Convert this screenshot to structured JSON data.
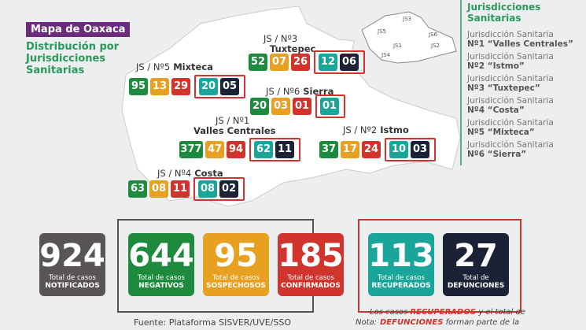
{
  "header": {
    "badge": "Mapa de Oaxaca",
    "subtitle": "Distribución por Jurisdicciones Sanitarias"
  },
  "legend": {
    "title": "Jurisdicciones Sanitarias",
    "items": [
      {
        "line1": "Jurisdicción Sanitaria",
        "line2": "Nº1 “Valles Centrales”"
      },
      {
        "line1": "Jurisdicción Sanitaria",
        "line2": "Nº2 “Istmo”"
      },
      {
        "line1": "Jurisdicción Sanitaria",
        "line2": "Nº3 “Tuxtepec”"
      },
      {
        "line1": "Jurisdicción Sanitaria",
        "line2": "Nº4 “Costa”"
      },
      {
        "line1": "Jurisdicción Sanitaria",
        "line2": "Nº5 “Mixteca”"
      },
      {
        "line1": "Jurisdicción Sanitaria",
        "line2": "Nº6 “Sierra”"
      }
    ]
  },
  "mini_map": {
    "labels": [
      "JS3",
      "JS5",
      "JS6",
      "JS1",
      "JS2",
      "JS4"
    ]
  },
  "regions": [
    {
      "code": "JS / Nº3",
      "name": "Tuxtepec",
      "values": [
        "52",
        "07",
        "26",
        "12",
        "06"
      ]
    },
    {
      "code": "JS / Nº5",
      "name": "Mixteca",
      "values": [
        "95",
        "13",
        "29",
        "20",
        "05"
      ]
    },
    {
      "code": "JS / Nº6",
      "name": "Sierra",
      "values": [
        "20",
        "03",
        "01",
        "01"
      ]
    },
    {
      "code": "JS / Nº1",
      "name": "Valles Centrales",
      "values": [
        "377",
        "47",
        "94",
        "62",
        "11"
      ]
    },
    {
      "code": "JS / Nº2",
      "name": "Istmo",
      "values": [
        "37",
        "17",
        "24",
        "10",
        "03"
      ]
    },
    {
      "code": "JS / Nº4",
      "name": "Costa",
      "values": [
        "63",
        "08",
        "11",
        "08",
        "02"
      ]
    }
  ],
  "totals": [
    {
      "value": "924",
      "label": "Total de casos",
      "status": "NOTIFICADOS"
    },
    {
      "value": "644",
      "label": "Total de casos",
      "status": "NEGATIVOS"
    },
    {
      "value": "95",
      "label": "Total de casos",
      "status": "SOSPECHOSOS"
    },
    {
      "value": "185",
      "label": "Total de casos",
      "status": "CONFIRMADOS"
    },
    {
      "value": "113",
      "label": "Total de casos",
      "status": "RECUPERADOS"
    },
    {
      "value": "27",
      "label": "Total de",
      "status": "DEFUNCIONES"
    }
  ],
  "footer": {
    "source": "Fuente: Plataforma SISVER/UVE/SSO",
    "note_label": "Nota:",
    "note_parts": [
      "Los casos ",
      "RECUPERADOS",
      " y el total de",
      "DEFUNCIONES",
      " forman parte de la"
    ]
  }
}
